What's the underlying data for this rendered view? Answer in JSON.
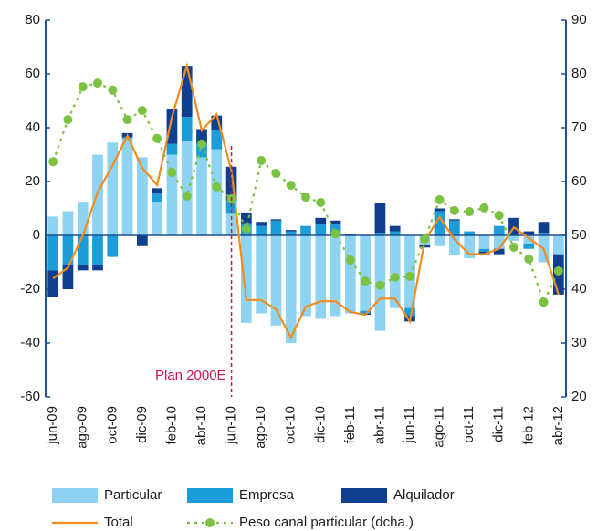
{
  "chart_data": {
    "type": "bar",
    "categories": [
      "jun-09",
      null,
      "ago-09",
      null,
      "oct-09",
      null,
      "dic-09",
      null,
      "feb-10",
      null,
      "abr-10",
      null,
      "jun-10",
      null,
      "ago-10",
      null,
      "oct-10",
      null,
      "dic-10",
      null,
      "feb-11",
      null,
      "abr-11",
      null,
      "jun-11",
      null,
      "ago-11",
      null,
      "oct-11",
      null,
      "dic-11",
      null,
      "feb-12",
      null,
      "abr-12"
    ],
    "series": [
      {
        "name": "Particular",
        "type": "bar",
        "color": "#8fd3f2",
        "values": [
          7,
          9,
          12.5,
          30,
          34.5,
          36,
          29,
          12.5,
          30,
          35,
          29,
          32,
          8,
          -32.5,
          -29,
          -33.5,
          -40,
          -30,
          -31,
          -30,
          -29,
          -28,
          -35.5,
          -27,
          -27,
          -3.5,
          -4,
          -7.5,
          -8.5,
          -5,
          -5,
          -2,
          -3,
          -10,
          -7
        ]
      },
      {
        "name": "Empresa",
        "type": "bar",
        "color": "#1c9cd8",
        "values": [
          -13,
          -11,
          -11,
          -11,
          -8,
          0.5,
          0,
          3,
          4,
          9,
          5,
          7,
          5,
          4.5,
          3.5,
          5.5,
          1.5,
          3.5,
          4,
          4,
          0,
          -1,
          1,
          1.5,
          -3,
          0,
          9,
          5.5,
          1.5,
          -1,
          3.5,
          0,
          -2,
          1,
          0
        ]
      },
      {
        "name": "Alquilador",
        "type": "bar",
        "color": "#0f3f8e",
        "values": [
          -10,
          -9,
          -2,
          -2,
          0,
          1.5,
          -4,
          2,
          13,
          19,
          5.5,
          5.5,
          12.5,
          4,
          1.5,
          0.5,
          0.5,
          0,
          2.5,
          1.5,
          0.5,
          -0.5,
          11,
          2,
          -2,
          -1,
          1,
          0.5,
          0,
          -1,
          -2,
          6.5,
          1.5,
          4,
          -15
        ]
      },
      {
        "name": "Total",
        "type": "line",
        "color": "#f28c1e",
        "values": [
          -16,
          -12,
          0,
          16,
          26,
          37,
          25,
          18.7,
          44,
          63,
          39,
          45,
          24,
          -24,
          -24,
          -27.5,
          -38,
          -26.5,
          -24.5,
          -24.5,
          -28.5,
          -29.5,
          -23.5,
          -23.5,
          -32,
          -2,
          6.8,
          -1.5,
          -7,
          -7,
          -5,
          3,
          -1,
          -5,
          -22
        ]
      },
      {
        "name": "Peso canal particular (dcha.)",
        "type": "line",
        "axis": "y2",
        "line_style": "dashed",
        "marker": "circle",
        "color": "#7cc242",
        "values": [
          63.7,
          71.5,
          77.6,
          78.3,
          77,
          71.5,
          73.2,
          68,
          61.7,
          57.3,
          67,
          59,
          56.8,
          51.2,
          63.9,
          61.5,
          59.3,
          57.1,
          56.1,
          50.3,
          45.4,
          41.5,
          40.7,
          42.2,
          42.4,
          49.3,
          56.6,
          54.6,
          54.4,
          55.1,
          53.7,
          47.8,
          45.6,
          37.6,
          43.4
        ]
      }
    ],
    "ylim": [
      -60,
      80
    ],
    "yticks": [
      -60,
      -40,
      -20,
      0,
      20,
      40,
      60,
      80
    ],
    "y2lim": [
      20,
      90
    ],
    "y2ticks": [
      20,
      30,
      40,
      50,
      60,
      70,
      80,
      90
    ],
    "annotation": "Plan 2000E"
  }
}
